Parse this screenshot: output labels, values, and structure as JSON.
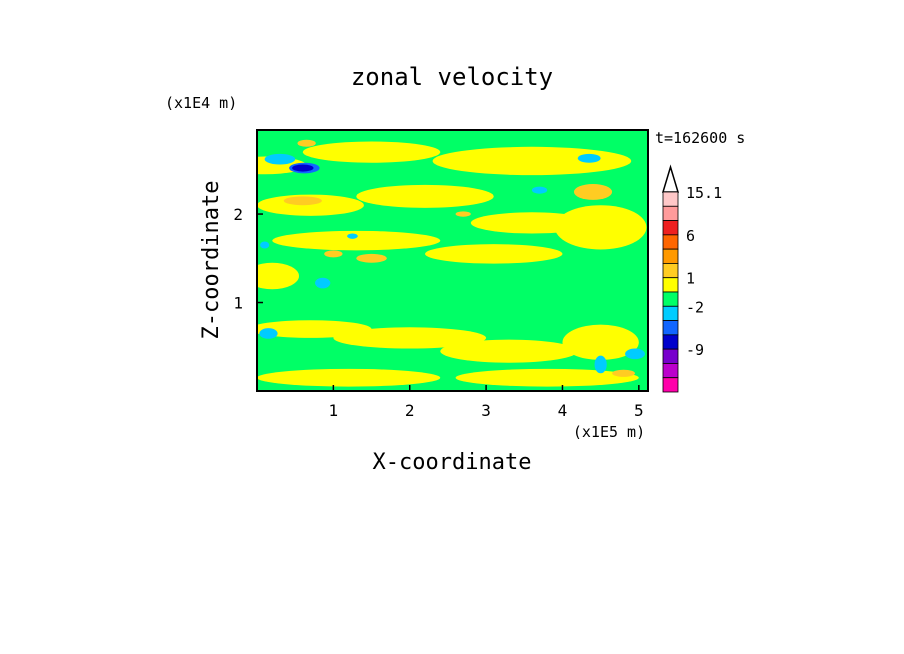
{
  "chart_data": {
    "type": "heatmap",
    "title": "zonal velocity",
    "xlabel": "X-coordinate",
    "ylabel": "Z-coordinate",
    "x_unit": "(x1E5 m)",
    "y_unit": "(x1E4 m)",
    "time_label": "t=162600 s",
    "xlim": [
      0,
      5.12
    ],
    "ylim": [
      0,
      2.95
    ],
    "x_ticks": [
      1,
      2,
      3,
      4,
      5
    ],
    "y_ticks": [
      1,
      2
    ],
    "background_level": "0 to 1",
    "colorbar": {
      "levels": [
        {
          "label": "15.1",
          "color": "#ffc8c8"
        },
        {
          "label": "",
          "color": "#ff9b9b"
        },
        {
          "label": "",
          "color": "#ee2020"
        },
        {
          "label": "6",
          "color": "#ff6600"
        },
        {
          "label": "",
          "color": "#ff9900"
        },
        {
          "label": "",
          "color": "#ffcc22"
        },
        {
          "label": "1",
          "color": "#ffff00"
        },
        {
          "label": "",
          "color": "#00ff66"
        },
        {
          "label": "-2",
          "color": "#00ccff"
        },
        {
          "label": "",
          "color": "#1166ff"
        },
        {
          "label": "",
          "color": "#0000cc"
        },
        {
          "label": "-9",
          "color": "#7700cc"
        },
        {
          "label": "",
          "color": "#bb00cc"
        },
        {
          "label": "",
          "color": "#ff00aa"
        }
      ]
    },
    "regions": [
      {
        "level": "1 to 2",
        "color": "#ffff00",
        "x": 0.1,
        "y": 2.55,
        "rx": 0.55,
        "ry": 0.1
      },
      {
        "level": "1 to 2",
        "color": "#ffff00",
        "x": 0.7,
        "y": 2.1,
        "rx": 0.7,
        "ry": 0.12
      },
      {
        "level": "1 to 2",
        "color": "#ffff00",
        "x": 1.5,
        "y": 2.7,
        "rx": 0.9,
        "ry": 0.12
      },
      {
        "level": "1 to 2",
        "color": "#ffff00",
        "x": 2.2,
        "y": 2.2,
        "rx": 0.9,
        "ry": 0.13
      },
      {
        "level": "1 to 2",
        "color": "#ffff00",
        "x": 3.6,
        "y": 2.6,
        "rx": 1.3,
        "ry": 0.16
      },
      {
        "level": "1 to 2",
        "color": "#ffff00",
        "x": 1.3,
        "y": 1.7,
        "rx": 1.1,
        "ry": 0.11
      },
      {
        "level": "1 to 2",
        "color": "#ffff00",
        "x": 3.1,
        "y": 1.55,
        "rx": 0.9,
        "ry": 0.11
      },
      {
        "level": "1 to 2",
        "color": "#ffff00",
        "x": 4.5,
        "y": 1.85,
        "rx": 0.6,
        "ry": 0.25
      },
      {
        "level": "1 to 2",
        "color": "#ffff00",
        "x": 3.6,
        "y": 1.9,
        "rx": 0.8,
        "ry": 0.12
      },
      {
        "level": "1 to 2",
        "color": "#ffff00",
        "x": 0.7,
        "y": 0.7,
        "rx": 0.8,
        "ry": 0.1
      },
      {
        "level": "1 to 2",
        "color": "#ffff00",
        "x": 2.0,
        "y": 0.6,
        "rx": 1.0,
        "ry": 0.12
      },
      {
        "level": "1 to 2",
        "color": "#ffff00",
        "x": 3.3,
        "y": 0.45,
        "rx": 0.9,
        "ry": 0.13
      },
      {
        "level": "1 to 2",
        "color": "#ffff00",
        "x": 4.5,
        "y": 0.55,
        "rx": 0.5,
        "ry": 0.2
      },
      {
        "level": "1 to 2",
        "color": "#ffff00",
        "x": 1.2,
        "y": 0.15,
        "rx": 1.2,
        "ry": 0.1
      },
      {
        "level": "1 to 2",
        "color": "#ffff00",
        "x": 3.8,
        "y": 0.15,
        "rx": 1.2,
        "ry": 0.1
      },
      {
        "level": "1 to 2",
        "color": "#ffff00",
        "x": 0.2,
        "y": 1.3,
        "rx": 0.35,
        "ry": 0.15
      },
      {
        "level": "2 to 4",
        "color": "#ffcc22",
        "x": 0.65,
        "y": 2.8,
        "rx": 0.12,
        "ry": 0.04
      },
      {
        "level": "2 to 4",
        "color": "#ffcc22",
        "x": 0.6,
        "y": 2.15,
        "rx": 0.25,
        "ry": 0.05
      },
      {
        "level": "2 to 4",
        "color": "#ffcc22",
        "x": 1.5,
        "y": 1.5,
        "rx": 0.2,
        "ry": 0.05
      },
      {
        "level": "2 to 4",
        "color": "#ffcc22",
        "x": 4.4,
        "y": 2.25,
        "rx": 0.25,
        "ry": 0.09
      },
      {
        "level": "2 to 4",
        "color": "#ffcc22",
        "x": 2.7,
        "y": 2.0,
        "rx": 0.1,
        "ry": 0.03
      },
      {
        "level": "2 to 4",
        "color": "#ffcc22",
        "x": 1.0,
        "y": 1.55,
        "rx": 0.12,
        "ry": 0.04
      },
      {
        "level": "2 to 4",
        "color": "#ffcc22",
        "x": 4.8,
        "y": 0.2,
        "rx": 0.15,
        "ry": 0.04
      },
      {
        "level": "-2 to 0",
        "color": "#00ccff",
        "x": 0.3,
        "y": 2.62,
        "rx": 0.2,
        "ry": 0.06
      },
      {
        "level": "-2 to 0",
        "color": "#00ccff",
        "x": 4.35,
        "y": 2.63,
        "rx": 0.15,
        "ry": 0.05
      },
      {
        "level": "-2 to 0",
        "color": "#00ccff",
        "x": 3.7,
        "y": 2.27,
        "rx": 0.1,
        "ry": 0.04
      },
      {
        "level": "-2 to 0",
        "color": "#00ccff",
        "x": 0.86,
        "y": 1.22,
        "rx": 0.1,
        "ry": 0.06
      },
      {
        "level": "-2 to 0",
        "color": "#00ccff",
        "x": 0.15,
        "y": 0.65,
        "rx": 0.12,
        "ry": 0.06
      },
      {
        "level": "-2 to 0",
        "color": "#00ccff",
        "x": 4.95,
        "y": 0.42,
        "rx": 0.13,
        "ry": 0.06
      },
      {
        "level": "-2 to 0",
        "color": "#00ccff",
        "x": 4.5,
        "y": 0.3,
        "rx": 0.08,
        "ry": 0.1
      },
      {
        "level": "-2 to 0",
        "color": "#00ccff",
        "x": 1.25,
        "y": 1.75,
        "rx": 0.07,
        "ry": 0.03
      },
      {
        "level": "-2 to 0",
        "color": "#00ccff",
        "x": 0.1,
        "y": 1.65,
        "rx": 0.06,
        "ry": 0.04
      },
      {
        "level": "-4 to -2",
        "color": "#1166ff",
        "x": 0.62,
        "y": 2.52,
        "rx": 0.2,
        "ry": 0.06
      },
      {
        "level": "-6 to -4",
        "color": "#0000cc",
        "x": 0.6,
        "y": 2.52,
        "rx": 0.14,
        "ry": 0.04
      }
    ]
  }
}
